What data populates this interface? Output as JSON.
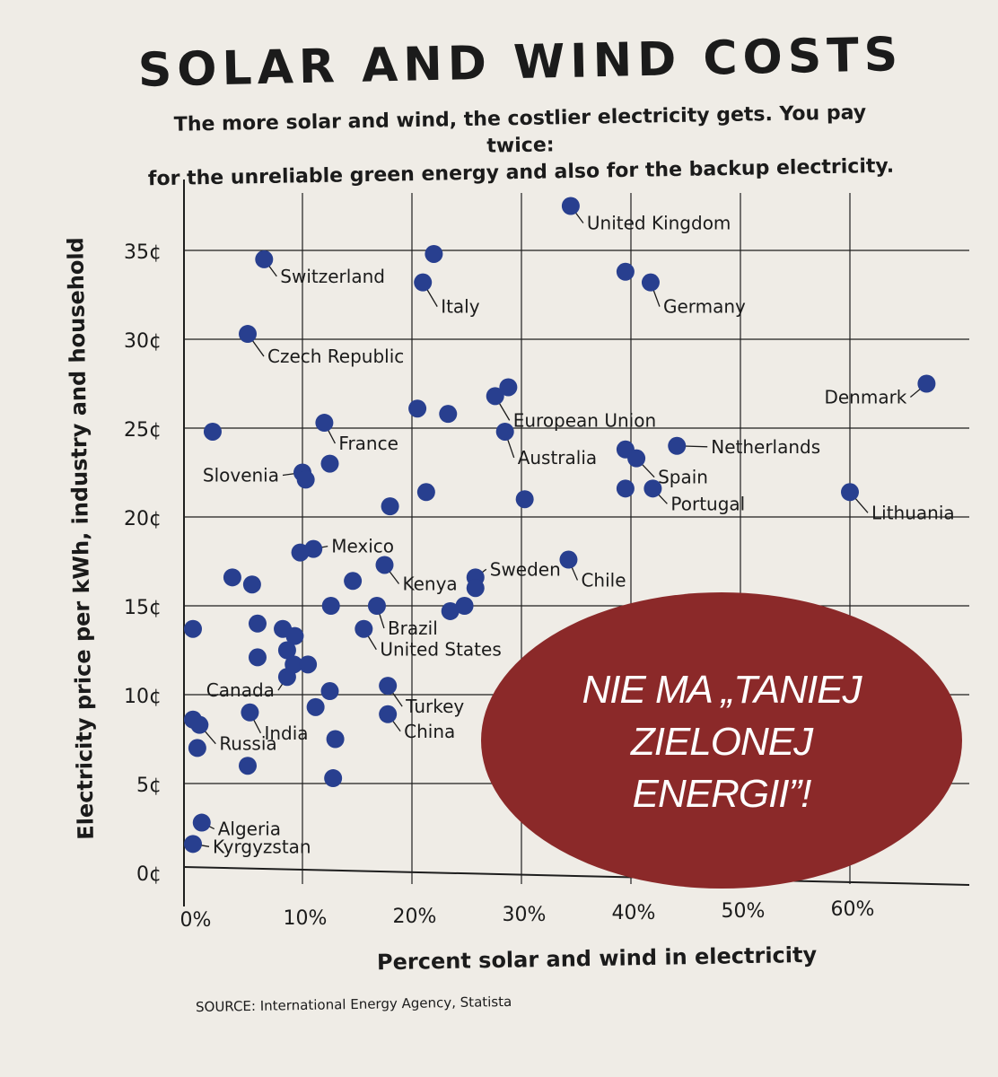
{
  "chart_data": {
    "type": "scatter",
    "title": "SOLAR AND WIND COSTS",
    "subtitle_lines": [
      "The more solar and wind, the costlier electricity gets. You pay twice:",
      "for the unreliable green energy and also for the backup electricity."
    ],
    "xlabel": "Percent solar and wind in electricity",
    "ylabel": "Electricity price per kWh, industry and household",
    "xlim": [
      0,
      67
    ],
    "ylim": [
      0,
      38
    ],
    "x_ticks": [
      {
        "v": 0,
        "label": "0%"
      },
      {
        "v": 10,
        "label": "10%"
      },
      {
        "v": 20,
        "label": "20%"
      },
      {
        "v": 30,
        "label": "30%"
      },
      {
        "v": 40,
        "label": "40%"
      },
      {
        "v": 50,
        "label": "50%"
      },
      {
        "v": 60,
        "label": "60%"
      }
    ],
    "y_ticks": [
      {
        "v": 0,
        "label": "0¢"
      },
      {
        "v": 5,
        "label": "5¢"
      },
      {
        "v": 10,
        "label": "10¢"
      },
      {
        "v": 15,
        "label": "15¢"
      },
      {
        "v": 20,
        "label": "20¢"
      },
      {
        "v": 25,
        "label": "25¢"
      },
      {
        "v": 30,
        "label": "30¢"
      },
      {
        "v": 35,
        "label": "35¢"
      }
    ],
    "grid": true,
    "point_color": "#283f8f",
    "points": [
      {
        "x": 34.5,
        "y": 37.5,
        "label": "United Kingdom"
      },
      {
        "x": 6.5,
        "y": 34.5,
        "label": "Switzerland"
      },
      {
        "x": 22,
        "y": 34.8
      },
      {
        "x": 21,
        "y": 33.2,
        "label": "Italy"
      },
      {
        "x": 39.5,
        "y": 33.8
      },
      {
        "x": 41.8,
        "y": 33.2,
        "label": "Germany"
      },
      {
        "x": 5,
        "y": 30.3,
        "label": "Czech Republic"
      },
      {
        "x": 67,
        "y": 27.5,
        "label": "Denmark"
      },
      {
        "x": 28.8,
        "y": 27.3
      },
      {
        "x": 27.6,
        "y": 26.8,
        "label": "European Union"
      },
      {
        "x": 20.5,
        "y": 26.1
      },
      {
        "x": 23.3,
        "y": 25.8
      },
      {
        "x": 12,
        "y": 25.3,
        "label": "France"
      },
      {
        "x": 1.8,
        "y": 24.8
      },
      {
        "x": 28.5,
        "y": 24.8,
        "label": "Australia"
      },
      {
        "x": 39.5,
        "y": 23.8
      },
      {
        "x": 44.2,
        "y": 24.0,
        "label": "Netherlands"
      },
      {
        "x": 40.5,
        "y": 23.3,
        "label": "Spain"
      },
      {
        "x": 12.5,
        "y": 23.0
      },
      {
        "x": 10,
        "y": 22.5,
        "label": "Slovenia"
      },
      {
        "x": 10.3,
        "y": 22.1
      },
      {
        "x": 39.5,
        "y": 21.6
      },
      {
        "x": 42,
        "y": 21.6,
        "label": "Portugal"
      },
      {
        "x": 60,
        "y": 21.4,
        "label": "Lithuania"
      },
      {
        "x": 21.3,
        "y": 21.4
      },
      {
        "x": 30.3,
        "y": 21.0
      },
      {
        "x": 18,
        "y": 20.6
      },
      {
        "x": 11,
        "y": 18.2,
        "label": "Mexico"
      },
      {
        "x": 9.8,
        "y": 18.0
      },
      {
        "x": 34.3,
        "y": 17.6,
        "label": "Chile"
      },
      {
        "x": 17.5,
        "y": 17.3,
        "label": "Kenya"
      },
      {
        "x": 25.8,
        "y": 16.6,
        "label": "Sweden"
      },
      {
        "x": 3.6,
        "y": 16.6
      },
      {
        "x": 5.4,
        "y": 16.2
      },
      {
        "x": 14.6,
        "y": 16.4
      },
      {
        "x": 25.8,
        "y": 16.0
      },
      {
        "x": 24.8,
        "y": 15.0
      },
      {
        "x": 23.5,
        "y": 14.7
      },
      {
        "x": 12.6,
        "y": 15.0
      },
      {
        "x": 16.8,
        "y": 15.0,
        "label": "Brazil"
      },
      {
        "x": 5.9,
        "y": 14.0
      },
      {
        "x": 8.2,
        "y": 13.7
      },
      {
        "x": 9.3,
        "y": 13.3
      },
      {
        "x": 0,
        "y": 13.7
      },
      {
        "x": 15.6,
        "y": 13.7,
        "label": "United States"
      },
      {
        "x": 8.6,
        "y": 12.5
      },
      {
        "x": 5.9,
        "y": 12.1
      },
      {
        "x": 9.2,
        "y": 11.7
      },
      {
        "x": 10.5,
        "y": 11.7
      },
      {
        "x": 8.6,
        "y": 11.0,
        "label": "Canada"
      },
      {
        "x": 17.8,
        "y": 10.5,
        "label": "Turkey"
      },
      {
        "x": 12.5,
        "y": 10.2
      },
      {
        "x": 11.2,
        "y": 9.3
      },
      {
        "x": 5.2,
        "y": 9.0,
        "label": "India"
      },
      {
        "x": 17.8,
        "y": 8.9,
        "label": "China"
      },
      {
        "x": 0,
        "y": 8.6
      },
      {
        "x": 0.6,
        "y": 8.3,
        "label": "Russia"
      },
      {
        "x": 13,
        "y": 7.5
      },
      {
        "x": 0.4,
        "y": 7.0
      },
      {
        "x": 5,
        "y": 6.0
      },
      {
        "x": 12.8,
        "y": 5.3
      },
      {
        "x": 0.8,
        "y": 2.8,
        "label": "Algeria"
      },
      {
        "x": 0,
        "y": 1.6,
        "label": "Kyrgyzstan"
      }
    ],
    "source": "SOURCE: International Energy Agency, Statista"
  },
  "stamp": {
    "lines": [
      "NIE MA „TANIEJ",
      "ZIELONEJ",
      "ENERGII”!"
    ],
    "color": "#8b2929"
  }
}
